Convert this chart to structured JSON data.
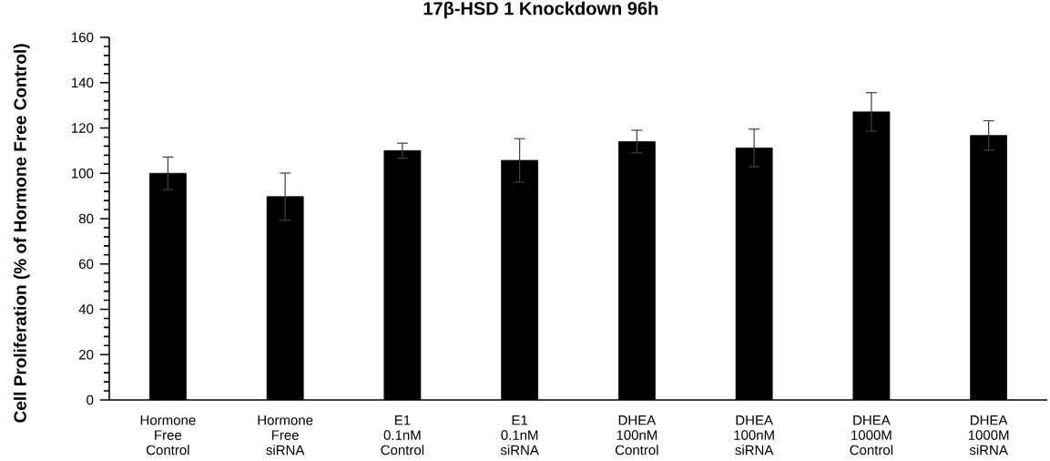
{
  "chart_data": {
    "type": "bar",
    "title": "17β-HSD 1 Knockdown 96h",
    "ylabel": "Cell Proliferation (% of Hormone Free Control)",
    "categories": [
      "Hormone Free Control",
      "Hormone Free siRNA",
      "E1 0.1nM Control",
      "E1 0.1nM siRNA",
      "DHEA 100nM Control",
      "DHEA 100nM siRNA",
      "DHEA 1000M Control",
      "DHEA 1000M siRNA"
    ],
    "values": [
      100,
      89.7,
      110,
      105.7,
      114,
      111.2,
      127.1,
      116.7
    ],
    "errors": [
      7.2,
      10.4,
      3.3,
      9.6,
      5,
      8.3,
      8.5,
      6.5
    ],
    "color": "#000000",
    "ylim": [
      0,
      160
    ],
    "yticks": [
      0,
      20,
      40,
      60,
      80,
      100,
      120,
      140,
      160
    ]
  }
}
